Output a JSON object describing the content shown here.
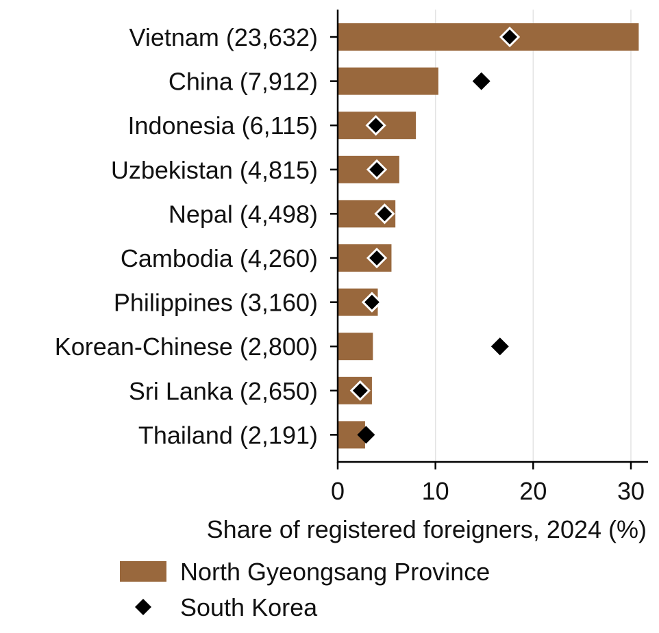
{
  "chart_data": {
    "type": "bar",
    "orientation": "horizontal",
    "categories": [
      "Vietnam (23,632)",
      "China (7,912)",
      "Indonesia (6,115)",
      "Uzbekistan (4,815)",
      "Nepal (4,498)",
      "Cambodia (4,260)",
      "Philippines (3,160)",
      "Korean-Chinese (2,800)",
      "Sri Lanka (2,650)",
      "Thailand (2,191)"
    ],
    "series": [
      {
        "name": "North Gyeongsang Province",
        "kind": "bar",
        "color": "#99683d",
        "values": [
          30.8,
          10.3,
          8.0,
          6.3,
          5.9,
          5.5,
          4.1,
          3.6,
          3.5,
          2.8
        ]
      },
      {
        "name": "South Korea",
        "kind": "marker",
        "marker": "diamond",
        "color": "#000000",
        "values": [
          17.6,
          14.7,
          3.9,
          4.0,
          4.8,
          4.0,
          3.5,
          16.6,
          2.3,
          2.9
        ]
      }
    ],
    "xlabel": "Share of registered foreigners, 2024 (%)",
    "ylabel": "",
    "xlim": [
      0,
      31.5
    ],
    "xticks": [
      0,
      10,
      20,
      30
    ],
    "grid": "vertical",
    "legend": "bottom"
  }
}
